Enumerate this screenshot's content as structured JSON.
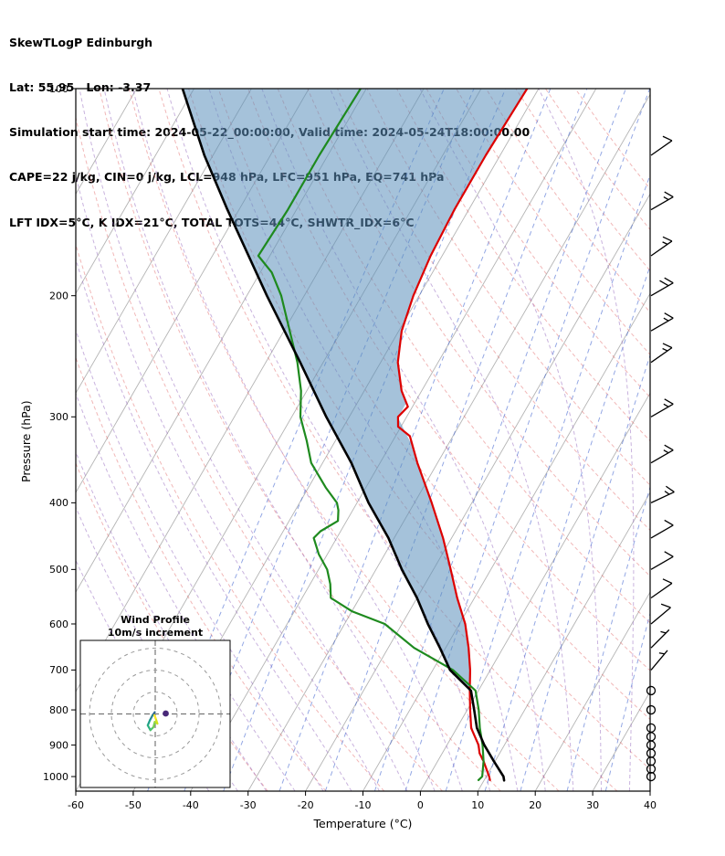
{
  "header": {
    "title": "SkewTLogP Edinburgh",
    "location": "Lat: 55.95   Lon: -3.37",
    "times": "Simulation start time: 2024-05-22_00:00:00, Valid time: 2024-05-24T18:00:00.00",
    "indices_line1": "CAPE=22 j/kg, CIN=0 j/kg, LCL=948 hPa, LFC=951 hPa, EQ=741 hPa",
    "indices_line2": "LFT IDX=5°C, K IDX=21°C, TOTAL TOTS=44°C, SHWTR_IDX=6°C"
  },
  "chart_data": {
    "type": "line",
    "title": "SkewTLogP Edinburgh",
    "xlabel": "Temperature (°C)",
    "ylabel": "Pressure (hPa)",
    "axes": {
      "t_min": -60,
      "t_max": 40,
      "p_top": 100,
      "p_bottom": 1050,
      "skew_deg_from_vertical": 30,
      "x_ticks": [
        -60,
        -50,
        -40,
        -30,
        -20,
        -10,
        0,
        10,
        20,
        30,
        40
      ],
      "y_ticks": [
        100,
        200,
        300,
        400,
        500,
        600,
        700,
        800,
        900,
        1000
      ]
    },
    "background": {
      "isotherms_c": {
        "start": -120,
        "end": 40,
        "step": 10,
        "color": "#9b9b9b",
        "opacity": 0.75
      },
      "dry_adiabats_c": {
        "start": -30,
        "end": 170,
        "step": 10,
        "color": "#e06060",
        "opacity": 0.45
      },
      "moist_adiabats_c": {
        "start": -40,
        "end": 40,
        "step": 5,
        "color": "#9467bd",
        "opacity": 0.5
      },
      "mixing_ratio_gkg": {
        "values": [
          0.05,
          0.1,
          0.2,
          0.5,
          1,
          2,
          3,
          5,
          8,
          12,
          20,
          30
        ],
        "color": "#3a5fcd",
        "opacity": 0.55
      }
    },
    "series": [
      {
        "name": "temperature",
        "color": "#dd0000",
        "width": 2.2,
        "points": [
          [
            1012,
            11
          ],
          [
            1000,
            10.5
          ],
          [
            950,
            8
          ],
          [
            925,
            6.5
          ],
          [
            900,
            5.5
          ],
          [
            850,
            2.5
          ],
          [
            800,
            0.5
          ],
          [
            750,
            -1.5
          ],
          [
            700,
            -3.5
          ],
          [
            650,
            -6
          ],
          [
            600,
            -9
          ],
          [
            550,
            -13
          ],
          [
            500,
            -17
          ],
          [
            450,
            -21.5
          ],
          [
            400,
            -27
          ],
          [
            350,
            -33.5
          ],
          [
            320,
            -37.5
          ],
          [
            310,
            -40.5
          ],
          [
            300,
            -41.5
          ],
          [
            290,
            -40.8
          ],
          [
            275,
            -43.5
          ],
          [
            250,
            -47
          ],
          [
            225,
            -49.5
          ],
          [
            200,
            -51
          ],
          [
            175,
            -52
          ],
          [
            150,
            -52.5
          ],
          [
            125,
            -52.5
          ],
          [
            100,
            -52
          ]
        ]
      },
      {
        "name": "dewpoint",
        "color": "#1e8a1e",
        "width": 2.2,
        "points": [
          [
            1012,
            9
          ],
          [
            1000,
            9.3
          ],
          [
            950,
            8
          ],
          [
            900,
            6.2
          ],
          [
            850,
            4
          ],
          [
            800,
            2
          ],
          [
            750,
            -0.5
          ],
          [
            700,
            -6.5
          ],
          [
            650,
            -15.5
          ],
          [
            600,
            -23
          ],
          [
            575,
            -30
          ],
          [
            550,
            -35
          ],
          [
            525,
            -36.5
          ],
          [
            500,
            -38.5
          ],
          [
            475,
            -41.5
          ],
          [
            450,
            -44
          ],
          [
            440,
            -43.5
          ],
          [
            425,
            -41.5
          ],
          [
            410,
            -42.5
          ],
          [
            400,
            -43.5
          ],
          [
            380,
            -47
          ],
          [
            350,
            -52
          ],
          [
            325,
            -55
          ],
          [
            300,
            -58.5
          ],
          [
            275,
            -61
          ],
          [
            250,
            -64.5
          ],
          [
            225,
            -69
          ],
          [
            200,
            -74
          ],
          [
            185,
            -78
          ],
          [
            175,
            -82
          ],
          [
            150,
            -81.5
          ],
          [
            125,
            -81.5
          ],
          [
            100,
            -81
          ]
        ]
      },
      {
        "name": "parcel_ascent",
        "color": "#000000",
        "width": 2.6,
        "points": [
          [
            1013,
            13.5
          ],
          [
            1000,
            13
          ],
          [
            950,
            9.8
          ],
          [
            900,
            6.5
          ],
          [
            850,
            3.5
          ],
          [
            800,
            1.2
          ],
          [
            750,
            -1.3
          ],
          [
            700,
            -7
          ],
          [
            650,
            -11
          ],
          [
            600,
            -15.5
          ],
          [
            550,
            -20
          ],
          [
            500,
            -25.5
          ],
          [
            450,
            -31
          ],
          [
            400,
            -38
          ],
          [
            350,
            -45
          ],
          [
            300,
            -54
          ],
          [
            250,
            -64
          ],
          [
            200,
            -76.5
          ],
          [
            150,
            -92
          ],
          [
            125,
            -101.5
          ],
          [
            100,
            -112
          ]
        ]
      }
    ],
    "shaded_area": {
      "between": [
        "parcel_ascent",
        "temperature"
      ],
      "from_hpa": 741,
      "to_hpa": 100,
      "color": "#5b90bb",
      "opacity": 0.55
    },
    "wind": {
      "full_barb_ms": 10,
      "barbs": [
        {
          "p": 125,
          "speed": 12,
          "dir": 55
        },
        {
          "p": 150,
          "speed": 15,
          "dir": 60
        },
        {
          "p": 175,
          "speed": 15,
          "dir": 55
        },
        {
          "p": 200,
          "speed": 18,
          "dir": 60
        },
        {
          "p": 225,
          "speed": 17,
          "dir": 60
        },
        {
          "p": 250,
          "speed": 15,
          "dir": 55
        },
        {
          "p": 300,
          "speed": 15,
          "dir": 60
        },
        {
          "p": 350,
          "speed": 13,
          "dir": 60
        },
        {
          "p": 400,
          "speed": 13,
          "dir": 65
        },
        {
          "p": 450,
          "speed": 12,
          "dir": 60
        },
        {
          "p": 500,
          "speed": 12,
          "dir": 60
        },
        {
          "p": 550,
          "speed": 10,
          "dir": 55
        },
        {
          "p": 600,
          "speed": 8,
          "dir": 50
        },
        {
          "p": 650,
          "speed": 7,
          "dir": 45
        },
        {
          "p": 700,
          "speed": 5,
          "dir": 40
        }
      ],
      "calm_circle_levels_hpa": [
        750,
        800,
        850,
        875,
        900,
        925,
        950,
        975,
        1000
      ]
    },
    "hodograph": {
      "title": "Wind Profile",
      "subtitle": "10m/s increment",
      "ring_interval_ms": 10,
      "rings_ms": [
        10,
        20,
        30
      ],
      "trace_uv_ms": [
        [
          -0.2,
          0.8
        ],
        [
          -1.2,
          -0.6
        ],
        [
          -2.4,
          -2.8
        ],
        [
          -3.4,
          -5.2
        ],
        [
          -2.2,
          -7.4
        ],
        [
          -0.8,
          -6.0
        ],
        [
          -0.2,
          -3.6
        ],
        [
          1.0,
          -4.4
        ],
        [
          0.2,
          -2.0
        ],
        [
          -0.4,
          -0.6
        ]
      ],
      "trace_colors": [
        "#31688e",
        "#26828e",
        "#1f9e89",
        "#2ab07f",
        "#4ec36b",
        "#7ad151",
        "#a5db36",
        "#d2e21b",
        "#fde725"
      ],
      "dot_uv_ms": [
        4.8,
        0.2
      ],
      "dot_color": "#482878"
    },
    "sounding_params": {
      "cape_j_kg": 22,
      "cin_j_kg": 0,
      "lcl_hpa": 948,
      "lfc_hpa": 951,
      "eq_hpa": 741,
      "lifted_index_c": 5,
      "k_index_c": 21,
      "total_totals_c": 44,
      "showalter_index_c": 6
    },
    "station": {
      "name": "Edinburgh",
      "lat": 55.95,
      "lon": -3.37,
      "sim_start": "2024-05-22_00:00:00",
      "valid_time": "2024-05-24T18:00:00.00"
    }
  }
}
